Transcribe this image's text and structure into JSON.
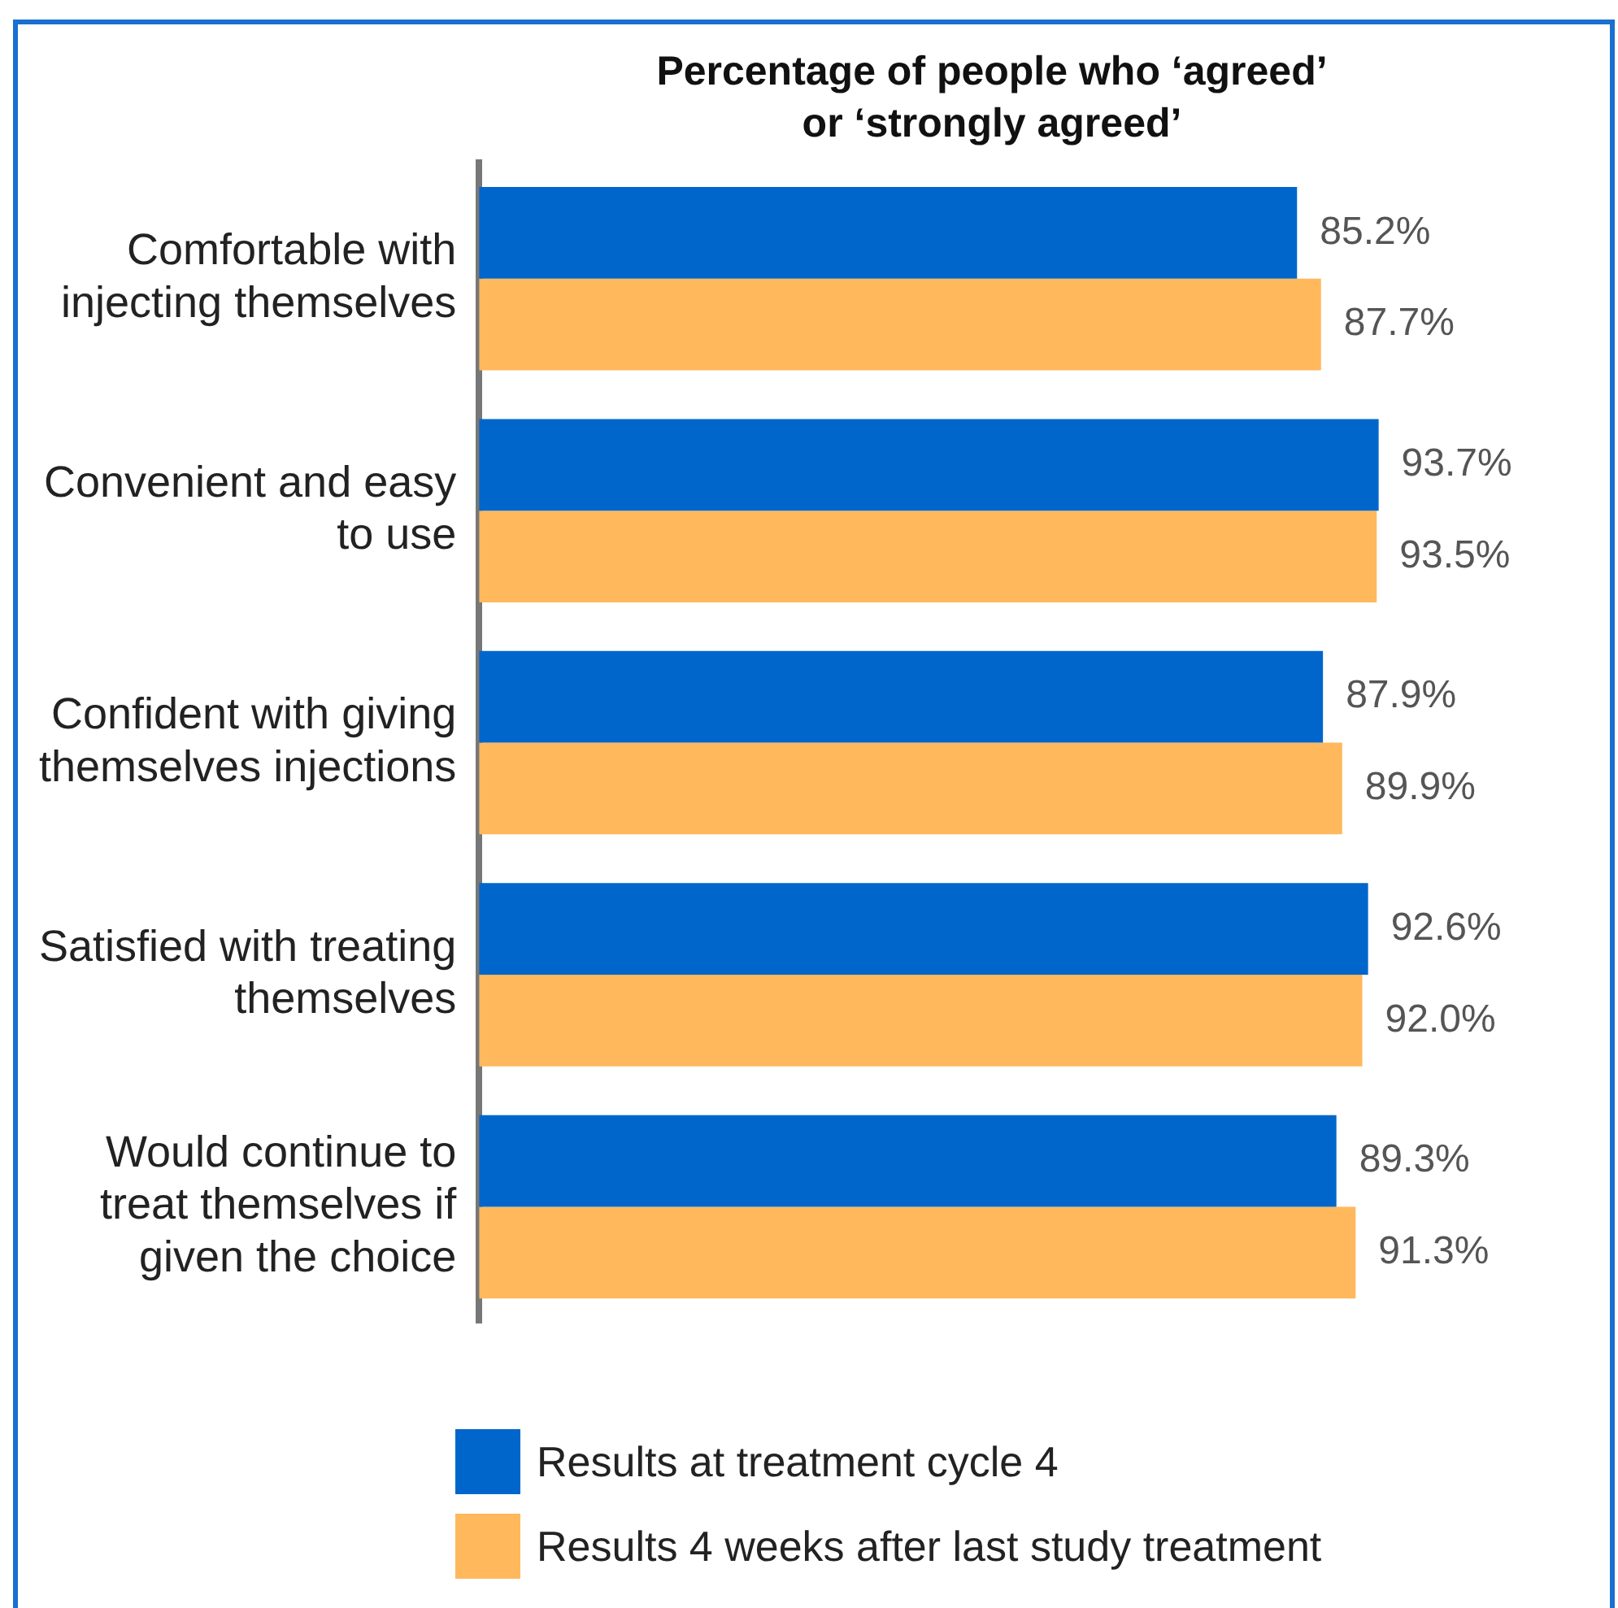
{
  "chart_data": {
    "type": "bar",
    "orientation": "horizontal",
    "title": "Percentage of people who ‘agreed’ or ‘strongly agreed’",
    "categories": [
      "Comfortable with injecting themselves",
      "Convenient and easy to use",
      "Confident with giving themselves injections",
      "Satisfied with treating themselves",
      "Would continue to treat themselves if given the choice"
    ],
    "series": [
      {
        "name": "Results at treatment cycle 4",
        "color": "#0066cc",
        "values": [
          85.2,
          93.7,
          87.9,
          92.6,
          89.3
        ],
        "value_labels": [
          "85.2%",
          "93.7%",
          "87.9%",
          "92.6%",
          "89.3%"
        ]
      },
      {
        "name": "Results 4 weeks after last study treatment",
        "color": "#ffb85c",
        "values": [
          87.7,
          93.5,
          89.9,
          92.0,
          91.3
        ],
        "value_labels": [
          "87.7%",
          "93.5%",
          "89.9%",
          "92.0%",
          "91.3%"
        ]
      }
    ],
    "legend": "bottom",
    "tick_labels": "y"
  }
}
